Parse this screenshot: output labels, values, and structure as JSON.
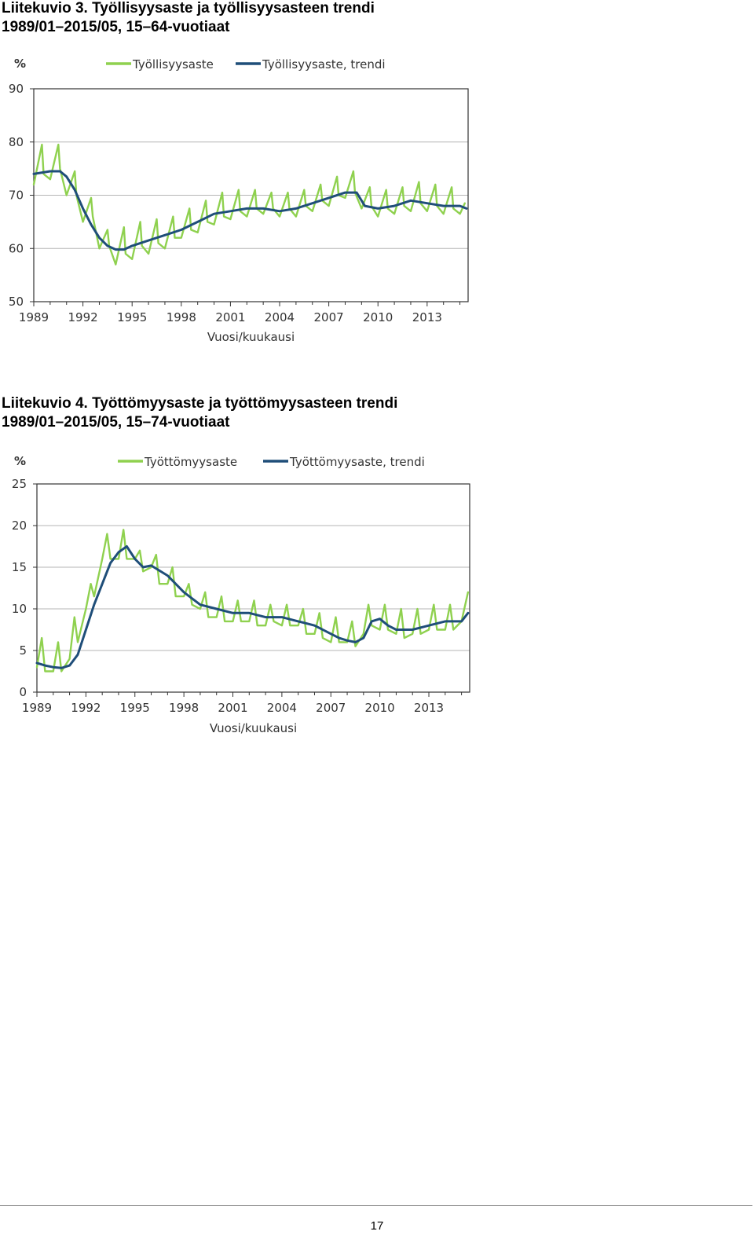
{
  "colors": {
    "observed": "#8fd14f",
    "trend": "#1f4e79",
    "grid": "#b5b5b5",
    "axis": "#333333"
  },
  "figures": [
    {
      "title_line1": "Liitekuvio 3. Työllisyysaste ja työllisyysasteen trendi",
      "title_line2": "1989/01–2015/05, 15–64-vuotiaat"
    },
    {
      "title_line1": "Liitekuvio 4. Työttömyysaste ja työttömyysasteen trendi",
      "title_line2": "1989/01–2015/05, 15–74-vuotiaat"
    }
  ],
  "page_number": "17",
  "chart_data": [
    {
      "type": "line",
      "title": "Liitekuvio 3. Työllisyysaste ja työllisyysasteen trendi 1989/01–2015/05, 15–64-vuotiaat",
      "ylabel": "%",
      "xlabel": "Vuosi/kuukausi",
      "ylim": [
        50,
        90
      ],
      "yticks": [
        50,
        60,
        70,
        80,
        90
      ],
      "xlim": [
        1989.0,
        2015.5
      ],
      "xticks": [
        1989,
        1992,
        1995,
        1998,
        2001,
        2004,
        2007,
        2010,
        2013
      ],
      "grid": true,
      "legend_position": "top",
      "series": [
        {
          "name": "Työllisyysaste",
          "kind": "observed",
          "x": [
            1989.0,
            1989.5,
            1989.6,
            1990.0,
            1990.5,
            1990.6,
            1991.0,
            1991.5,
            1991.6,
            1992.0,
            1992.5,
            1992.6,
            1993.0,
            1993.5,
            1993.6,
            1994.0,
            1994.5,
            1994.6,
            1995.0,
            1995.5,
            1995.6,
            1996.0,
            1996.5,
            1996.6,
            1997.0,
            1997.5,
            1997.6,
            1998.0,
            1998.5,
            1998.6,
            1999.0,
            1999.5,
            1999.6,
            2000.0,
            2000.5,
            2000.6,
            2001.0,
            2001.5,
            2001.6,
            2002.0,
            2002.5,
            2002.6,
            2003.0,
            2003.5,
            2003.6,
            2004.0,
            2004.5,
            2004.6,
            2005.0,
            2005.5,
            2005.6,
            2006.0,
            2006.5,
            2006.6,
            2007.0,
            2007.5,
            2007.6,
            2008.0,
            2008.5,
            2008.6,
            2009.0,
            2009.5,
            2009.6,
            2010.0,
            2010.5,
            2010.6,
            2011.0,
            2011.5,
            2011.6,
            2012.0,
            2012.5,
            2012.6,
            2013.0,
            2013.5,
            2013.6,
            2014.0,
            2014.5,
            2014.6,
            2015.0,
            2015.3
          ],
          "y": [
            72.0,
            79.5,
            74.0,
            73.0,
            79.5,
            75.0,
            70.0,
            74.5,
            70.0,
            65.0,
            69.5,
            66.0,
            60.0,
            63.5,
            60.5,
            57.0,
            64.0,
            59.0,
            58.0,
            65.0,
            60.5,
            59.0,
            65.5,
            61.0,
            60.0,
            66.0,
            62.0,
            62.0,
            67.5,
            63.5,
            63.0,
            69.0,
            65.0,
            64.5,
            70.5,
            66.0,
            65.5,
            71.0,
            67.0,
            66.0,
            71.0,
            67.5,
            66.5,
            70.5,
            67.5,
            66.0,
            70.5,
            67.5,
            66.0,
            71.0,
            68.0,
            67.0,
            72.0,
            69.0,
            68.0,
            73.5,
            70.0,
            69.5,
            74.5,
            70.5,
            67.5,
            71.5,
            68.0,
            66.0,
            71.0,
            67.5,
            66.5,
            71.5,
            68.0,
            67.0,
            72.5,
            68.5,
            67.0,
            72.0,
            68.0,
            66.5,
            71.5,
            67.5,
            66.5,
            68.5
          ]
        },
        {
          "name": "Työllisyysaste, trendi",
          "kind": "trend",
          "x": [
            1989.0,
            1990.0,
            1990.6,
            1991.0,
            1991.5,
            1992.0,
            1992.5,
            1993.0,
            1993.5,
            1994.0,
            1994.5,
            1995.0,
            1996.0,
            1997.0,
            1998.0,
            1999.0,
            2000.0,
            2001.0,
            2002.0,
            2003.0,
            2004.0,
            2005.0,
            2006.0,
            2007.0,
            2008.0,
            2008.7,
            2009.2,
            2010.0,
            2011.0,
            2012.0,
            2013.0,
            2014.0,
            2015.0,
            2015.4
          ],
          "y": [
            74.0,
            74.5,
            74.5,
            73.5,
            71.0,
            67.5,
            64.5,
            62.0,
            60.5,
            59.8,
            59.8,
            60.5,
            61.5,
            62.5,
            63.5,
            65.0,
            66.5,
            67.0,
            67.5,
            67.5,
            67.0,
            67.5,
            68.5,
            69.5,
            70.5,
            70.5,
            68.0,
            67.5,
            68.0,
            69.0,
            68.5,
            68.0,
            68.0,
            67.5
          ]
        }
      ]
    },
    {
      "type": "line",
      "title": "Liitekuvio 4. Työttömyysaste ja työttömyysasteen trendi 1989/01–2015/05, 15–74-vuotiaat",
      "ylabel": "%",
      "xlabel": "Vuosi/kuukausi",
      "ylim": [
        0,
        25
      ],
      "yticks": [
        0,
        5,
        10,
        15,
        20,
        25
      ],
      "xlim": [
        1989.0,
        2015.5
      ],
      "xticks": [
        1989,
        1992,
        1995,
        1998,
        2001,
        2004,
        2007,
        2010,
        2013
      ],
      "grid": true,
      "legend_position": "top",
      "series": [
        {
          "name": "Työttömyysaste",
          "kind": "observed",
          "x": [
            1989.0,
            1989.3,
            1989.5,
            1990.0,
            1990.3,
            1990.5,
            1991.0,
            1991.3,
            1991.5,
            1992.0,
            1992.3,
            1992.5,
            1993.0,
            1993.3,
            1993.5,
            1994.0,
            1994.3,
            1994.5,
            1995.0,
            1995.3,
            1995.5,
            1996.0,
            1996.3,
            1996.5,
            1997.0,
            1997.3,
            1997.5,
            1998.0,
            1998.3,
            1998.5,
            1999.0,
            1999.3,
            1999.5,
            2000.0,
            2000.3,
            2000.5,
            2001.0,
            2001.3,
            2001.5,
            2002.0,
            2002.3,
            2002.5,
            2003.0,
            2003.3,
            2003.5,
            2004.0,
            2004.3,
            2004.5,
            2005.0,
            2005.3,
            2005.5,
            2006.0,
            2006.3,
            2006.5,
            2007.0,
            2007.3,
            2007.5,
            2008.0,
            2008.3,
            2008.5,
            2009.0,
            2009.3,
            2009.5,
            2010.0,
            2010.3,
            2010.5,
            2011.0,
            2011.3,
            2011.5,
            2012.0,
            2012.3,
            2012.5,
            2013.0,
            2013.3,
            2013.5,
            2014.0,
            2014.3,
            2014.5,
            2015.0,
            2015.4
          ],
          "y": [
            3.0,
            6.5,
            2.5,
            2.5,
            6.0,
            2.5,
            4.0,
            9.0,
            6.0,
            10.0,
            13.0,
            11.5,
            16.0,
            19.0,
            16.0,
            16.0,
            19.5,
            16.0,
            16.0,
            17.0,
            14.5,
            15.0,
            16.5,
            13.0,
            13.0,
            15.0,
            11.5,
            11.5,
            13.0,
            10.5,
            10.0,
            12.0,
            9.0,
            9.0,
            11.5,
            8.5,
            8.5,
            11.0,
            8.5,
            8.5,
            11.0,
            8.0,
            8.0,
            10.5,
            8.5,
            8.0,
            10.5,
            8.0,
            8.0,
            10.0,
            7.0,
            7.0,
            9.5,
            6.5,
            6.0,
            9.0,
            6.0,
            6.0,
            8.5,
            5.5,
            7.0,
            10.5,
            8.0,
            7.5,
            10.5,
            7.5,
            7.0,
            10.0,
            6.5,
            7.0,
            10.0,
            7.0,
            7.5,
            10.5,
            7.5,
            7.5,
            10.5,
            7.5,
            8.5,
            12.0
          ]
        },
        {
          "name": "Työttömyysaste, trendi",
          "kind": "trend",
          "x": [
            1989.0,
            1989.5,
            1990.0,
            1990.5,
            1991.0,
            1991.5,
            1992.0,
            1992.5,
            1993.0,
            1993.5,
            1994.0,
            1994.5,
            1995.0,
            1995.5,
            1996.0,
            1997.0,
            1998.0,
            1999.0,
            2000.0,
            2001.0,
            2002.0,
            2003.0,
            2004.0,
            2005.0,
            2006.0,
            2007.0,
            2007.5,
            2008.0,
            2008.5,
            2009.0,
            2009.5,
            2010.0,
            2010.5,
            2011.0,
            2012.0,
            2013.0,
            2014.0,
            2015.0,
            2015.4
          ],
          "y": [
            3.5,
            3.2,
            3.0,
            2.9,
            3.2,
            4.5,
            7.5,
            10.5,
            13.0,
            15.5,
            16.8,
            17.5,
            16.0,
            15.0,
            15.2,
            14.0,
            12.0,
            10.5,
            10.0,
            9.5,
            9.5,
            9.0,
            9.0,
            8.5,
            8.0,
            7.0,
            6.5,
            6.2,
            6.0,
            6.5,
            8.5,
            8.8,
            8.0,
            7.5,
            7.5,
            8.0,
            8.5,
            8.5,
            9.5
          ]
        }
      ]
    }
  ]
}
